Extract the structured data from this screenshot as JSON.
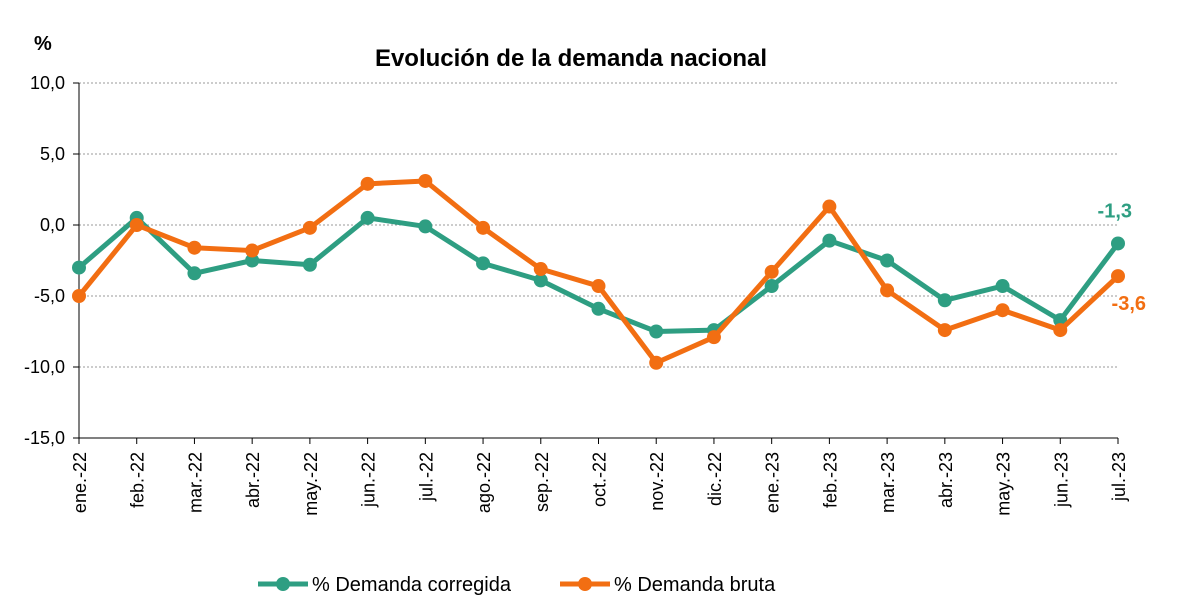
{
  "chart_data": {
    "type": "line",
    "title": "Evolución de la demanda nacional",
    "ylabel": "%",
    "xlabel": "",
    "ylim": [
      -15,
      10
    ],
    "yticks": [
      "10,0",
      "5,0",
      "0,0",
      "-5,0",
      "-10,0",
      "-15,0"
    ],
    "ytick_values": [
      10,
      5,
      0,
      -5,
      -10,
      -15
    ],
    "categories": [
      "ene.-22",
      "feb.-22",
      "mar.-22",
      "abr.-22",
      "may.-22",
      "jun.-22",
      "jul.-22",
      "ago.-22",
      "sep.-22",
      "oct.-22",
      "nov.-22",
      "dic.-22",
      "ene.-23",
      "feb.-23",
      "mar.-23",
      "abr.-23",
      "may.-23",
      "jun.-23",
      "jul.-23"
    ],
    "grid": true,
    "legend_position": "bottom",
    "series": [
      {
        "name": "% Demanda corregida",
        "color": "#2e9e82",
        "values": [
          -3.0,
          0.5,
          -3.4,
          -2.5,
          -2.8,
          0.5,
          -0.1,
          -2.7,
          -3.9,
          -5.9,
          -7.5,
          -7.4,
          -4.3,
          -1.1,
          -2.5,
          -5.3,
          -4.3,
          -6.7,
          -1.3
        ],
        "end_label": "-1,3"
      },
      {
        "name": "% Demanda bruta",
        "color": "#f26e12",
        "values": [
          -5.0,
          0.0,
          -1.6,
          -1.8,
          -0.2,
          2.9,
          3.1,
          -0.2,
          -3.1,
          -4.3,
          -9.7,
          -7.9,
          -3.3,
          1.3,
          -4.6,
          -7.4,
          -6.0,
          -7.4,
          -3.6
        ],
        "end_label": "-3,6"
      }
    ]
  }
}
